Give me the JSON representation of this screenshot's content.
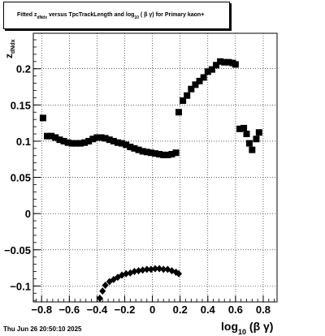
{
  "title": {
    "pre": "Fitted",
    "z": "z",
    "z_sub": "dNdx",
    "mid": "versus TpcTrackLength and log",
    "log_sub": "10",
    "post": "( β γ) for Primary kaon+"
  },
  "footer": "Thu Jun 26 20:50:10 2025",
  "xlabel": {
    "main": "log",
    "sub": "10",
    "post": "(β γ)"
  },
  "ylabel": {
    "main": "z",
    "sub": "dNdx"
  },
  "chart_data": {
    "type": "scatter",
    "title": "Fitted z_dNdx versus TpcTrackLength and log10(βγ) for Primary kaon+",
    "xlabel": "log10(β γ)",
    "ylabel": "z_dNdx",
    "xlim": [
      -0.86,
      0.9
    ],
    "ylim": [
      -0.122,
      0.249
    ],
    "grid": true,
    "x_ticks": [
      "−0.8",
      "−0.6",
      "−0.4",
      "−0.2",
      "0",
      "0.2",
      "0.4",
      "0.6",
      "0.8"
    ],
    "x_tick_values": [
      -0.8,
      -0.6,
      -0.4,
      -0.2,
      0,
      0.2,
      0.4,
      0.6,
      0.8
    ],
    "y_ticks": [
      "−0.1",
      "−0.05",
      "0",
      "0.05",
      "0.1",
      "0.15",
      "0.2"
    ],
    "y_tick_values": [
      -0.1,
      -0.05,
      0,
      0.05,
      0.1,
      0.15,
      0.2
    ],
    "series": [
      {
        "marker": "square",
        "points": [
          [
            -0.79,
            0.132
          ],
          [
            -0.76,
            0.107
          ],
          [
            -0.73,
            0.107
          ],
          [
            -0.7,
            0.105
          ],
          [
            -0.67,
            0.102
          ],
          [
            -0.64,
            0.1
          ],
          [
            -0.61,
            0.098
          ],
          [
            -0.58,
            0.097
          ],
          [
            -0.55,
            0.097
          ],
          [
            -0.52,
            0.097
          ],
          [
            -0.49,
            0.098
          ],
          [
            -0.46,
            0.1
          ],
          [
            -0.43,
            0.103
          ],
          [
            -0.4,
            0.105
          ],
          [
            -0.37,
            0.105
          ],
          [
            -0.34,
            0.104
          ],
          [
            -0.31,
            0.102
          ],
          [
            -0.28,
            0.1
          ],
          [
            -0.25,
            0.098
          ],
          [
            -0.22,
            0.097
          ],
          [
            -0.19,
            0.095
          ],
          [
            -0.16,
            0.092
          ],
          [
            -0.13,
            0.09
          ],
          [
            -0.1,
            0.088
          ],
          [
            -0.07,
            0.086
          ],
          [
            -0.04,
            0.085
          ],
          [
            -0.01,
            0.084
          ],
          [
            0.02,
            0.083
          ],
          [
            0.05,
            0.082
          ],
          [
            0.08,
            0.081
          ],
          [
            0.11,
            0.081
          ],
          [
            0.14,
            0.082
          ],
          [
            0.17,
            0.084
          ],
          [
            0.19,
            0.14
          ],
          [
            0.22,
            0.156
          ],
          [
            0.25,
            0.163
          ],
          [
            0.28,
            0.172
          ],
          [
            0.31,
            0.178
          ],
          [
            0.34,
            0.183
          ],
          [
            0.37,
            0.188
          ],
          [
            0.4,
            0.196
          ],
          [
            0.43,
            0.199
          ],
          [
            0.46,
            0.205
          ],
          [
            0.49,
            0.21
          ],
          [
            0.52,
            0.209
          ],
          [
            0.55,
            0.209
          ],
          [
            0.58,
            0.208
          ],
          [
            0.6,
            0.206
          ],
          [
            0.63,
            0.117
          ],
          [
            0.66,
            0.118
          ],
          [
            0.68,
            0.11
          ],
          [
            0.7,
            0.097
          ],
          [
            0.72,
            0.088
          ],
          [
            0.75,
            0.103
          ],
          [
            0.77,
            0.112
          ]
        ]
      },
      {
        "marker": "diamond",
        "points": [
          [
            -0.38,
            -0.117
          ],
          [
            -0.36,
            -0.107
          ],
          [
            -0.34,
            -0.099
          ],
          [
            -0.31,
            -0.094
          ],
          [
            -0.28,
            -0.091
          ],
          [
            -0.25,
            -0.088
          ],
          [
            -0.22,
            -0.085
          ],
          [
            -0.19,
            -0.083
          ],
          [
            -0.16,
            -0.082
          ],
          [
            -0.13,
            -0.08
          ],
          [
            -0.1,
            -0.079
          ],
          [
            -0.07,
            -0.078
          ],
          [
            -0.04,
            -0.077
          ],
          [
            -0.01,
            -0.077
          ],
          [
            0.02,
            -0.076
          ],
          [
            0.05,
            -0.076
          ],
          [
            0.08,
            -0.077
          ],
          [
            0.11,
            -0.077
          ],
          [
            0.14,
            -0.079
          ],
          [
            0.17,
            -0.081
          ],
          [
            0.19,
            -0.083
          ]
        ]
      }
    ]
  }
}
